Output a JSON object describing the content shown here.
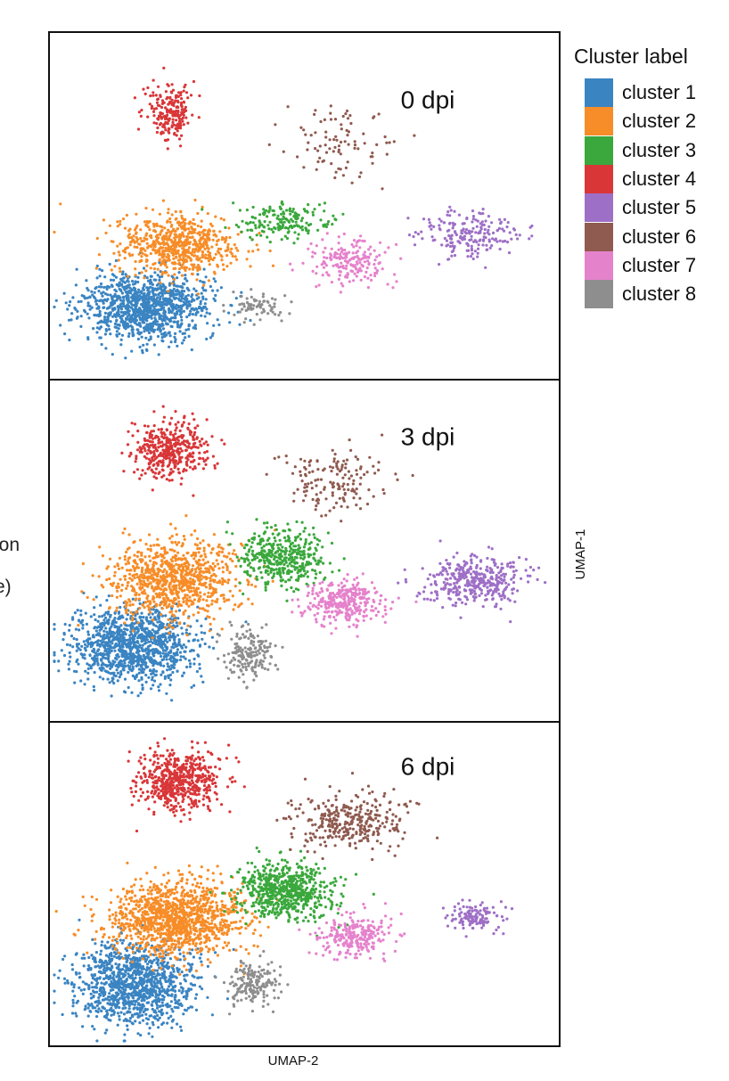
{
  "chart_data": {
    "type": "scatter",
    "title": "",
    "xlabel": "UMAP-2",
    "ylabel": "UMAP-1",
    "legend": {
      "title": "Cluster label",
      "placement": "top-right, outside plot",
      "entries": [
        {
          "name": "cluster 1",
          "color": "#3a84c2"
        },
        {
          "name": "cluster 2",
          "color": "#f78d28"
        },
        {
          "name": "cluster 3",
          "color": "#3aa83c"
        },
        {
          "name": "cluster 4",
          "color": "#d93638"
        },
        {
          "name": "cluster 5",
          "color": "#9e6fc6"
        },
        {
          "name": "cluster 6",
          "color": "#8f5a4f"
        },
        {
          "name": "cluster 7",
          "color": "#e582cc"
        },
        {
          "name": "cluster 8",
          "color": "#8e8e8e"
        }
      ]
    },
    "clipped_side_text": [
      "ion",
      "e)"
    ],
    "panels": [
      {
        "label": "0 dpi",
        "clusters": [
          {
            "name": "cluster 1",
            "centroid": [
              165,
              345
            ],
            "spread": [
              48,
              25
            ],
            "n": 1100
          },
          {
            "name": "cluster 2",
            "centroid": [
              200,
              275
            ],
            "spread": [
              45,
              22
            ],
            "n": 650
          },
          {
            "name": "cluster 3",
            "centroid": [
              318,
              247
            ],
            "spread": [
              38,
              16
            ],
            "n": 170
          },
          {
            "name": "cluster 4",
            "centroid": [
              190,
              125
            ],
            "spread": [
              17,
              20
            ],
            "n": 210
          },
          {
            "name": "cluster 5",
            "centroid": [
              530,
              262
            ],
            "spread": [
              38,
              18
            ],
            "n": 200
          },
          {
            "name": "cluster 6",
            "centroid": [
              375,
              160
            ],
            "spread": [
              38,
              25
            ],
            "n": 90
          },
          {
            "name": "cluster 7",
            "centroid": [
              395,
              295
            ],
            "spread": [
              28,
              18
            ],
            "n": 200
          },
          {
            "name": "cluster 8",
            "centroid": [
              285,
              345
            ],
            "spread": [
              22,
              12
            ],
            "n": 70
          }
        ]
      },
      {
        "label": "3 dpi",
        "clusters": [
          {
            "name": "cluster 1",
            "centroid": [
              150,
              725
            ],
            "spread": [
              45,
              27
            ],
            "n": 1150
          },
          {
            "name": "cluster 2",
            "centroid": [
              195,
              650
            ],
            "spread": [
              48,
              28
            ],
            "n": 900
          },
          {
            "name": "cluster 3",
            "centroid": [
              318,
              625
            ],
            "spread": [
              32,
              22
            ],
            "n": 400
          },
          {
            "name": "cluster 4",
            "centroid": [
              190,
              505
            ],
            "spread": [
              28,
              22
            ],
            "n": 400
          },
          {
            "name": "cluster 5",
            "centroid": [
              530,
              650
            ],
            "spread": [
              38,
              18
            ],
            "n": 380
          },
          {
            "name": "cluster 6",
            "centroid": [
              375,
              540
            ],
            "spread": [
              40,
              25
            ],
            "n": 150
          },
          {
            "name": "cluster 7",
            "centroid": [
              385,
              675
            ],
            "spread": [
              30,
              16
            ],
            "n": 320
          },
          {
            "name": "cluster 8",
            "centroid": [
              280,
              733
            ],
            "spread": [
              20,
              17
            ],
            "n": 170
          }
        ]
      },
      {
        "label": "6 dpi",
        "clusters": [
          {
            "name": "cluster 1",
            "centroid": [
              150,
              1105
            ],
            "spread": [
              45,
              30
            ],
            "n": 1100
          },
          {
            "name": "cluster 2",
            "centroid": [
              195,
              1030
            ],
            "spread": [
              50,
              28
            ],
            "n": 1200
          },
          {
            "name": "cluster 3",
            "centroid": [
              318,
              1000
            ],
            "spread": [
              36,
              22
            ],
            "n": 650
          },
          {
            "name": "cluster 4",
            "centroid": [
              200,
              875
            ],
            "spread": [
              30,
              22
            ],
            "n": 550
          },
          {
            "name": "cluster 5",
            "centroid": [
              535,
              1030
            ],
            "spread": [
              22,
              10
            ],
            "n": 120
          },
          {
            "name": "cluster 6",
            "centroid": [
              395,
              920
            ],
            "spread": [
              45,
              22
            ],
            "n": 320
          },
          {
            "name": "cluster 7",
            "centroid": [
              395,
              1050
            ],
            "spread": [
              28,
              15
            ],
            "n": 260
          },
          {
            "name": "cluster 8",
            "centroid": [
              285,
              1103
            ],
            "spread": [
              20,
              17
            ],
            "n": 170
          }
        ]
      }
    ]
  }
}
